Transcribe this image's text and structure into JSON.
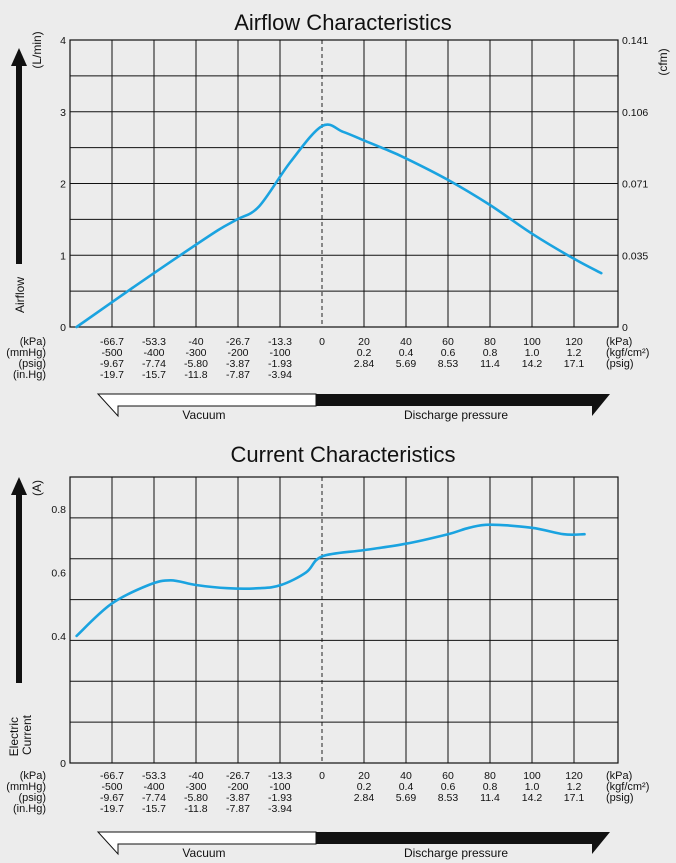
{
  "chart_data": [
    {
      "type": "line",
      "title": "Airflow Characteristics",
      "ylabel": "Airflow",
      "ylabel_unit_left": "(L/min)",
      "ylabel_unit_right": "(cfm)",
      "ylim": [
        0,
        4
      ],
      "xlim": [
        -80,
        135
      ],
      "y_ticks_left": [
        "0",
        "1",
        "2",
        "3",
        "4"
      ],
      "y_ticks_right": [
        "0",
        "0.035",
        "0.071",
        "0.106",
        "0.141"
      ],
      "grid": true,
      "x": [
        -78,
        -60,
        -45,
        -33,
        -27,
        -20,
        -10,
        0,
        10,
        20,
        30,
        40,
        60,
        80,
        100,
        120,
        133
      ],
      "y": [
        0.0,
        0.55,
        1.0,
        1.35,
        1.5,
        1.68,
        2.3,
        2.8,
        2.72,
        2.6,
        2.48,
        2.35,
        2.05,
        1.7,
        1.3,
        0.95,
        0.75
      ],
      "series": [
        {
          "values": [
            0.0,
            0.55,
            1.0,
            1.35,
            1.5,
            1.68,
            2.3,
            2.8,
            2.72,
            2.6,
            2.48,
            2.35,
            2.05,
            1.7,
            1.3,
            0.95,
            0.75
          ]
        }
      ]
    },
    {
      "type": "line",
      "title": "Current  Characteristics",
      "ylabel": "Electric Current",
      "ylabel_unit_left": "(A)",
      "ylim": [
        0,
        0.9
      ],
      "xlim": [
        -80,
        135
      ],
      "y_ticks_left": [
        "0",
        "0.4",
        "0.6",
        "0.8"
      ],
      "grid": true,
      "x": [
        -78,
        -67,
        -55,
        -48,
        -40,
        -30,
        -20,
        -13,
        -5,
        0,
        20,
        40,
        60,
        70,
        80,
        100,
        115,
        125
      ],
      "y": [
        0.4,
        0.5,
        0.56,
        0.575,
        0.56,
        0.55,
        0.55,
        0.56,
        0.6,
        0.65,
        0.67,
        0.69,
        0.72,
        0.74,
        0.75,
        0.74,
        0.72,
        0.72
      ],
      "series": [
        {
          "values": [
            0.4,
            0.5,
            0.56,
            0.575,
            0.56,
            0.55,
            0.55,
            0.56,
            0.6,
            0.65,
            0.67,
            0.69,
            0.72,
            0.74,
            0.75,
            0.74,
            0.72,
            0.72
          ]
        }
      ]
    }
  ],
  "x_axis_rows": [
    {
      "unit": "(kPa)",
      "values": [
        "-66.7",
        "-53.3",
        "-40",
        "-26.7",
        "-13.3",
        "0",
        "20",
        "40",
        "60",
        "80",
        "100",
        "120"
      ],
      "right_unit": "(kPa)"
    },
    {
      "unit": "(mmHg)",
      "values": [
        "-500",
        "-400",
        "-300",
        "-200",
        "-100",
        "",
        "0.2",
        "0.4",
        "0.6",
        "0.8",
        "1.0",
        "1.2"
      ],
      "right_unit": "(kgf/cm²)"
    },
    {
      "unit": "(psig)",
      "values": [
        "-9.67",
        "-7.74",
        "-5.80",
        "-3.87",
        "-1.93",
        "",
        "2.84",
        "5.69",
        "8.53",
        "11.4",
        "14.2",
        "17.1"
      ],
      "right_unit": "(psig)"
    },
    {
      "unit": "(in.Hg)",
      "values": [
        "-19.7",
        "-15.7",
        "-11.8",
        "-7.87",
        "-3.94",
        "",
        "",
        "",
        "",
        "",
        "",
        ""
      ],
      "right_unit": ""
    }
  ],
  "bar_labels": {
    "vacuum": "Vacuum",
    "discharge": "Discharge pressure"
  },
  "colors": {
    "line": "#1aa3e0",
    "background": "#ececec",
    "grid": "#111111"
  }
}
